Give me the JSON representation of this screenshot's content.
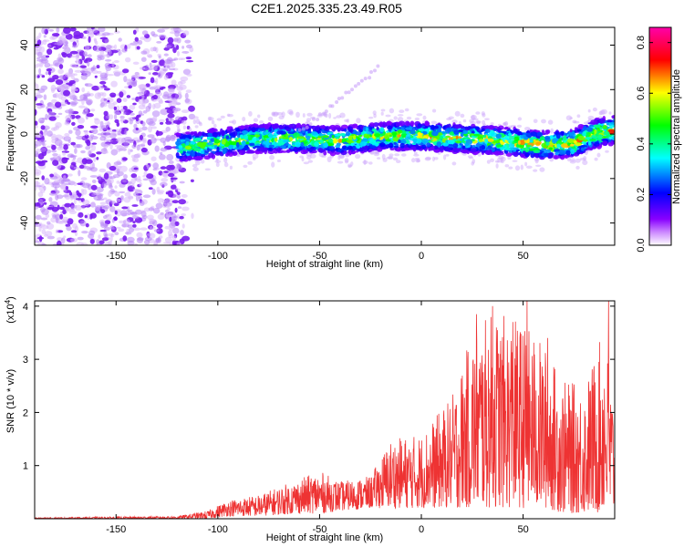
{
  "title": "C2E1.2025.335.23.49.R05",
  "chart_data": [
    {
      "type": "heatmap",
      "xlabel": "Height of straight line (km)",
      "ylabel": "Frequency (Hz)",
      "xlim": [
        -190,
        95
      ],
      "ylim": [
        -50,
        48
      ],
      "xticks": [
        -150,
        -100,
        -50,
        0,
        50
      ],
      "yticks": [
        -40,
        -20,
        0,
        20,
        40
      ],
      "grid": false,
      "colorbar": {
        "label": "Normalized spectral amplitude",
        "range": [
          0.0,
          0.86
        ],
        "ticks": [
          "0.0",
          "0.2",
          "0.4",
          "0.6",
          "0.8"
        ],
        "colormap": [
          "#ffffff",
          "#8800ff",
          "#0000ff",
          "#00ffff",
          "#00ff00",
          "#ffff00",
          "#ff0000",
          "#ff00cc"
        ]
      },
      "noise_region_km": [
        -190,
        -120
      ],
      "signal_band": {
        "x_start_km": -120,
        "x_end_km": 95,
        "center_freq_hz": [
          {
            "x": -120,
            "y": -6
          },
          {
            "x": -100,
            "y": -4
          },
          {
            "x": -80,
            "y": -2
          },
          {
            "x": -60,
            "y": -2
          },
          {
            "x": -40,
            "y": -3
          },
          {
            "x": -20,
            "y": -1
          },
          {
            "x": 0,
            "y": -1
          },
          {
            "x": 20,
            "y": -2
          },
          {
            "x": 40,
            "y": -3
          },
          {
            "x": 60,
            "y": -5
          },
          {
            "x": 75,
            "y": -4
          },
          {
            "x": 85,
            "y": 0
          },
          {
            "x": 95,
            "y": 2
          }
        ],
        "half_width_hz": 6,
        "peak_amplitude": 0.8
      }
    },
    {
      "type": "line",
      "xlabel": "Height of straight line (km)",
      "ylabel": "SNR (10 * v/v)",
      "y_multiplier": "(x10",
      "y_multiplier_exp": "4",
      "y_multiplier_close": ")",
      "xlim": [
        -190,
        95
      ],
      "ylim": [
        0,
        4.1
      ],
      "xticks": [
        -150,
        -100,
        -50,
        0,
        50
      ],
      "yticks": [
        1,
        2,
        3,
        4
      ],
      "color": "#ee3333",
      "envelope": [
        {
          "x": -190,
          "lo": 0.0,
          "hi": 0.02
        },
        {
          "x": -120,
          "lo": 0.0,
          "hi": 0.05
        },
        {
          "x": -105,
          "lo": 0.0,
          "hi": 0.15
        },
        {
          "x": -95,
          "lo": 0.05,
          "hi": 0.35
        },
        {
          "x": -80,
          "lo": 0.05,
          "hi": 0.45
        },
        {
          "x": -60,
          "lo": 0.1,
          "hi": 0.75
        },
        {
          "x": -50,
          "lo": 0.1,
          "hi": 0.9
        },
        {
          "x": -40,
          "lo": 0.15,
          "hi": 0.7
        },
        {
          "x": -25,
          "lo": 0.2,
          "hi": 0.8
        },
        {
          "x": -15,
          "lo": 0.2,
          "hi": 1.5
        },
        {
          "x": 0,
          "lo": 0.2,
          "hi": 1.6
        },
        {
          "x": 15,
          "lo": 0.2,
          "hi": 2.3
        },
        {
          "x": 25,
          "lo": 0.2,
          "hi": 3.5
        },
        {
          "x": 35,
          "lo": 0.2,
          "hi": 3.9
        },
        {
          "x": 50,
          "lo": 0.2,
          "hi": 3.7
        },
        {
          "x": 60,
          "lo": 0.2,
          "hi": 3.3
        },
        {
          "x": 70,
          "lo": 0.1,
          "hi": 2.6
        },
        {
          "x": 80,
          "lo": 0.1,
          "hi": 2.5
        },
        {
          "x": 90,
          "lo": 0.1,
          "hi": 3.6
        },
        {
          "x": 95,
          "lo": 0.1,
          "hi": 2.0
        }
      ],
      "peaks": [
        {
          "x": 27,
          "y": 3.85
        },
        {
          "x": 35,
          "y": 4.0
        },
        {
          "x": 52,
          "y": 4.1
        },
        {
          "x": 92,
          "y": 4.1
        },
        {
          "x": 62,
          "y": 3.4
        },
        {
          "x": 45,
          "y": 3.7
        }
      ]
    }
  ]
}
